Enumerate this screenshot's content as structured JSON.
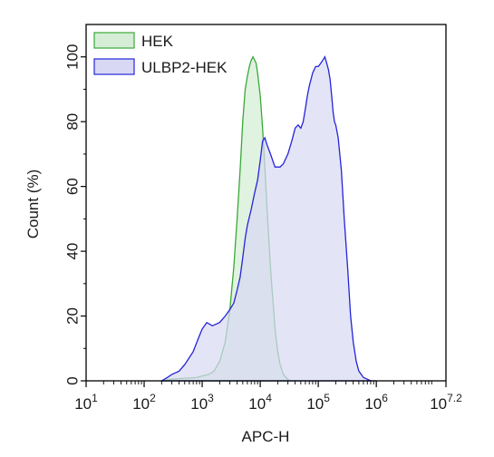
{
  "chart_data": {
    "type": "area",
    "xlabel": "APC-H",
    "ylabel": "Count (%)",
    "x_scale": "log10",
    "xlim": [
      10,
      15848932
    ],
    "ylim": [
      0,
      110
    ],
    "x_ticks": [
      {
        "base": "10",
        "exp": "1",
        "value": 10
      },
      {
        "base": "10",
        "exp": "2",
        "value": 100
      },
      {
        "base": "10",
        "exp": "3",
        "value": 1000
      },
      {
        "base": "10",
        "exp": "4",
        "value": 10000
      },
      {
        "base": "10",
        "exp": "5",
        "value": 100000
      },
      {
        "base": "10",
        "exp": "6",
        "value": 1000000
      },
      {
        "base": "10",
        "exp": "7.2",
        "value": 15848932
      }
    ],
    "y_ticks": [
      "0",
      "20",
      "40",
      "60",
      "80",
      "100"
    ],
    "y_tick_values": [
      0,
      20,
      40,
      60,
      80,
      100
    ],
    "grid": false,
    "legend_position": "top-left",
    "series": [
      {
        "name": "HEK",
        "line_color": "#3aa83a",
        "fill_color": "#d5edd5",
        "x": [
          200,
          300,
          500,
          800,
          1000,
          1300,
          1600,
          2000,
          2500,
          3000,
          3500,
          4000,
          4500,
          5000,
          5500,
          6000,
          6500,
          7000,
          7500,
          8000,
          8500,
          9000,
          10000,
          11000,
          12000,
          13000,
          14000,
          15000,
          16000,
          17000,
          18000,
          20000,
          22000,
          25000,
          28000,
          32000
        ],
        "values": [
          0,
          0.5,
          0.8,
          1,
          1.5,
          2,
          3,
          6,
          12,
          22,
          35,
          50,
          65,
          80,
          90,
          94,
          97,
          99,
          100,
          99,
          98,
          95,
          88,
          78,
          66,
          54,
          44,
          35,
          28,
          22,
          16,
          9,
          5,
          2,
          1,
          0
        ]
      },
      {
        "name": "ULBP2-HEK",
        "line_color": "#2424d8",
        "fill_color": "#d8d8f4",
        "x": [
          200,
          250,
          300,
          400,
          500,
          700,
          900,
          1000,
          1200,
          1500,
          2000,
          2500,
          3000,
          3500,
          4000,
          4500,
          5000,
          5500,
          6000,
          7000,
          8000,
          9000,
          10000,
          11000,
          12000,
          13000,
          15000,
          18000,
          22000,
          25000,
          30000,
          35000,
          40000,
          45000,
          50000,
          55000,
          60000,
          65000,
          70000,
          80000,
          90000,
          100000,
          110000,
          120000,
          130000,
          140000,
          150000,
          160000,
          170000,
          180000,
          190000,
          200000,
          220000,
          250000,
          280000,
          320000,
          360000,
          400000,
          450000,
          500000,
          550000,
          600000,
          700000,
          800000,
          1000000
        ],
        "values": [
          0,
          1,
          2,
          3,
          5,
          9,
          14,
          16,
          18,
          17,
          18,
          20,
          22,
          24,
          28,
          32,
          38,
          44,
          48,
          53,
          58,
          62,
          68,
          74,
          75,
          73,
          70,
          66,
          66,
          67,
          70,
          74,
          78,
          79,
          78,
          80,
          84,
          88,
          91,
          95,
          97,
          97,
          98,
          99,
          100,
          98,
          96,
          93,
          88,
          83,
          80,
          79,
          75,
          65,
          50,
          35,
          20,
          12,
          6,
          3,
          2,
          1,
          0.5,
          0,
          0
        ]
      }
    ]
  }
}
